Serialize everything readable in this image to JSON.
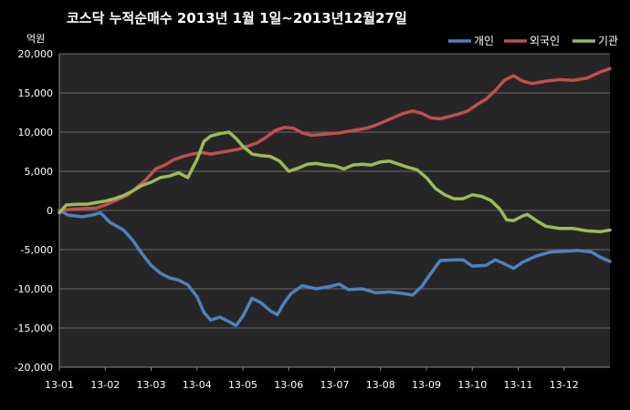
{
  "chart_data": {
    "type": "line",
    "title": "코스닥  누적순매수 2013년 1월 1일~2013년12월27일",
    "ylabel": "억원",
    "ylim": [
      -20000,
      20000
    ],
    "yticks": [
      20000,
      15000,
      10000,
      5000,
      0,
      -5000,
      -10000,
      -15000,
      -20000
    ],
    "ytick_labels": [
      "20,000",
      "15,000",
      "10,000",
      "5,000",
      "0",
      "-5,000",
      "-10,000",
      "-15,000",
      "-20,000"
    ],
    "xlim": [
      0,
      12
    ],
    "x_tick_labels": [
      "13-01",
      "13-02",
      "13-03",
      "13-04",
      "13-05",
      "13-06",
      "13-07",
      "13-08",
      "13-09",
      "13-10",
      "13-11",
      "13-12"
    ],
    "grid": true,
    "legend_position": "top-right",
    "series": [
      {
        "name": "개인",
        "color": "#4f81bd",
        "points": [
          [
            0,
            0
          ],
          [
            0.2,
            -600
          ],
          [
            0.5,
            -800
          ],
          [
            0.7,
            -600
          ],
          [
            0.9,
            -300
          ],
          [
            1.1,
            -1500
          ],
          [
            1.4,
            -2500
          ],
          [
            1.6,
            -3800
          ],
          [
            1.8,
            -5500
          ],
          [
            2.0,
            -7000
          ],
          [
            2.2,
            -8000
          ],
          [
            2.4,
            -8600
          ],
          [
            2.6,
            -8900
          ],
          [
            2.8,
            -9500
          ],
          [
            3.0,
            -11000
          ],
          [
            3.15,
            -13000
          ],
          [
            3.3,
            -14000
          ],
          [
            3.5,
            -13600
          ],
          [
            3.7,
            -14200
          ],
          [
            3.85,
            -14700
          ],
          [
            4.0,
            -13500
          ],
          [
            4.2,
            -11200
          ],
          [
            4.4,
            -11800
          ],
          [
            4.6,
            -12800
          ],
          [
            4.75,
            -13300
          ],
          [
            4.9,
            -11800
          ],
          [
            5.05,
            -10600
          ],
          [
            5.3,
            -9600
          ],
          [
            5.6,
            -10000
          ],
          [
            5.9,
            -9700
          ],
          [
            6.1,
            -9400
          ],
          [
            6.3,
            -10100
          ],
          [
            6.6,
            -10000
          ],
          [
            6.9,
            -10500
          ],
          [
            7.2,
            -10400
          ],
          [
            7.5,
            -10600
          ],
          [
            7.7,
            -10800
          ],
          [
            7.9,
            -9700
          ],
          [
            8.1,
            -8000
          ],
          [
            8.3,
            -6400
          ],
          [
            8.6,
            -6300
          ],
          [
            8.8,
            -6300
          ],
          [
            9.0,
            -7100
          ],
          [
            9.3,
            -7000
          ],
          [
            9.5,
            -6300
          ],
          [
            9.7,
            -6800
          ],
          [
            9.9,
            -7400
          ],
          [
            10.1,
            -6600
          ],
          [
            10.4,
            -5800
          ],
          [
            10.7,
            -5300
          ],
          [
            11.0,
            -5200
          ],
          [
            11.3,
            -5100
          ],
          [
            11.6,
            -5300
          ],
          [
            11.8,
            -6000
          ],
          [
            12.0,
            -6500
          ]
        ]
      },
      {
        "name": "외국인",
        "color": "#c0504d",
        "points": [
          [
            0,
            0
          ],
          [
            0.4,
            200
          ],
          [
            0.8,
            300
          ],
          [
            1.0,
            700
          ],
          [
            1.2,
            1200
          ],
          [
            1.5,
            2000
          ],
          [
            1.7,
            3000
          ],
          [
            1.9,
            4000
          ],
          [
            2.1,
            5300
          ],
          [
            2.3,
            5800
          ],
          [
            2.5,
            6500
          ],
          [
            2.7,
            6900
          ],
          [
            2.9,
            7200
          ],
          [
            3.1,
            7400
          ],
          [
            3.3,
            7200
          ],
          [
            3.5,
            7400
          ],
          [
            3.7,
            7600
          ],
          [
            3.9,
            7800
          ],
          [
            4.1,
            8200
          ],
          [
            4.3,
            8600
          ],
          [
            4.5,
            9300
          ],
          [
            4.7,
            10200
          ],
          [
            4.9,
            10600
          ],
          [
            5.1,
            10500
          ],
          [
            5.3,
            9900
          ],
          [
            5.5,
            9600
          ],
          [
            5.7,
            9700
          ],
          [
            5.9,
            9800
          ],
          [
            6.1,
            9900
          ],
          [
            6.3,
            10100
          ],
          [
            6.5,
            10300
          ],
          [
            6.7,
            10500
          ],
          [
            6.9,
            10900
          ],
          [
            7.1,
            11400
          ],
          [
            7.3,
            11900
          ],
          [
            7.5,
            12400
          ],
          [
            7.7,
            12700
          ],
          [
            7.9,
            12400
          ],
          [
            8.1,
            11800
          ],
          [
            8.3,
            11700
          ],
          [
            8.5,
            12000
          ],
          [
            8.7,
            12300
          ],
          [
            8.9,
            12700
          ],
          [
            9.1,
            13500
          ],
          [
            9.3,
            14200
          ],
          [
            9.5,
            15300
          ],
          [
            9.7,
            16600
          ],
          [
            9.9,
            17200
          ],
          [
            10.1,
            16500
          ],
          [
            10.3,
            16200
          ],
          [
            10.6,
            16500
          ],
          [
            10.9,
            16700
          ],
          [
            11.2,
            16600
          ],
          [
            11.5,
            16900
          ],
          [
            11.8,
            17700
          ],
          [
            12.0,
            18100
          ]
        ]
      },
      {
        "name": "기관",
        "color": "#9bbb59",
        "points": [
          [
            0,
            -300
          ],
          [
            0.15,
            700
          ],
          [
            0.4,
            800
          ],
          [
            0.6,
            800
          ],
          [
            0.8,
            1000
          ],
          [
            1.0,
            1200
          ],
          [
            1.2,
            1500
          ],
          [
            1.4,
            1900
          ],
          [
            1.6,
            2500
          ],
          [
            1.8,
            3200
          ],
          [
            2.0,
            3600
          ],
          [
            2.2,
            4200
          ],
          [
            2.4,
            4400
          ],
          [
            2.6,
            4800
          ],
          [
            2.8,
            4200
          ],
          [
            3.0,
            6500
          ],
          [
            3.15,
            8800
          ],
          [
            3.3,
            9500
          ],
          [
            3.5,
            9800
          ],
          [
            3.7,
            10000
          ],
          [
            3.85,
            9200
          ],
          [
            4.0,
            8200
          ],
          [
            4.2,
            7200
          ],
          [
            4.4,
            7000
          ],
          [
            4.6,
            6900
          ],
          [
            4.8,
            6300
          ],
          [
            5.0,
            5000
          ],
          [
            5.2,
            5400
          ],
          [
            5.4,
            5900
          ],
          [
            5.6,
            6000
          ],
          [
            5.8,
            5800
          ],
          [
            6.0,
            5700
          ],
          [
            6.2,
            5300
          ],
          [
            6.4,
            5800
          ],
          [
            6.6,
            5900
          ],
          [
            6.8,
            5800
          ],
          [
            7.0,
            6200
          ],
          [
            7.2,
            6300
          ],
          [
            7.4,
            5900
          ],
          [
            7.6,
            5500
          ],
          [
            7.8,
            5200
          ],
          [
            8.0,
            4200
          ],
          [
            8.2,
            2800
          ],
          [
            8.4,
            2000
          ],
          [
            8.6,
            1500
          ],
          [
            8.8,
            1500
          ],
          [
            9.0,
            2000
          ],
          [
            9.2,
            1800
          ],
          [
            9.4,
            1300
          ],
          [
            9.6,
            200
          ],
          [
            9.75,
            -1200
          ],
          [
            9.9,
            -1300
          ],
          [
            10.1,
            -700
          ],
          [
            10.2,
            -500
          ],
          [
            10.4,
            -1300
          ],
          [
            10.6,
            -2000
          ],
          [
            10.9,
            -2300
          ],
          [
            11.2,
            -2300
          ],
          [
            11.5,
            -2600
          ],
          [
            11.8,
            -2700
          ],
          [
            12.0,
            -2500
          ]
        ]
      }
    ]
  }
}
